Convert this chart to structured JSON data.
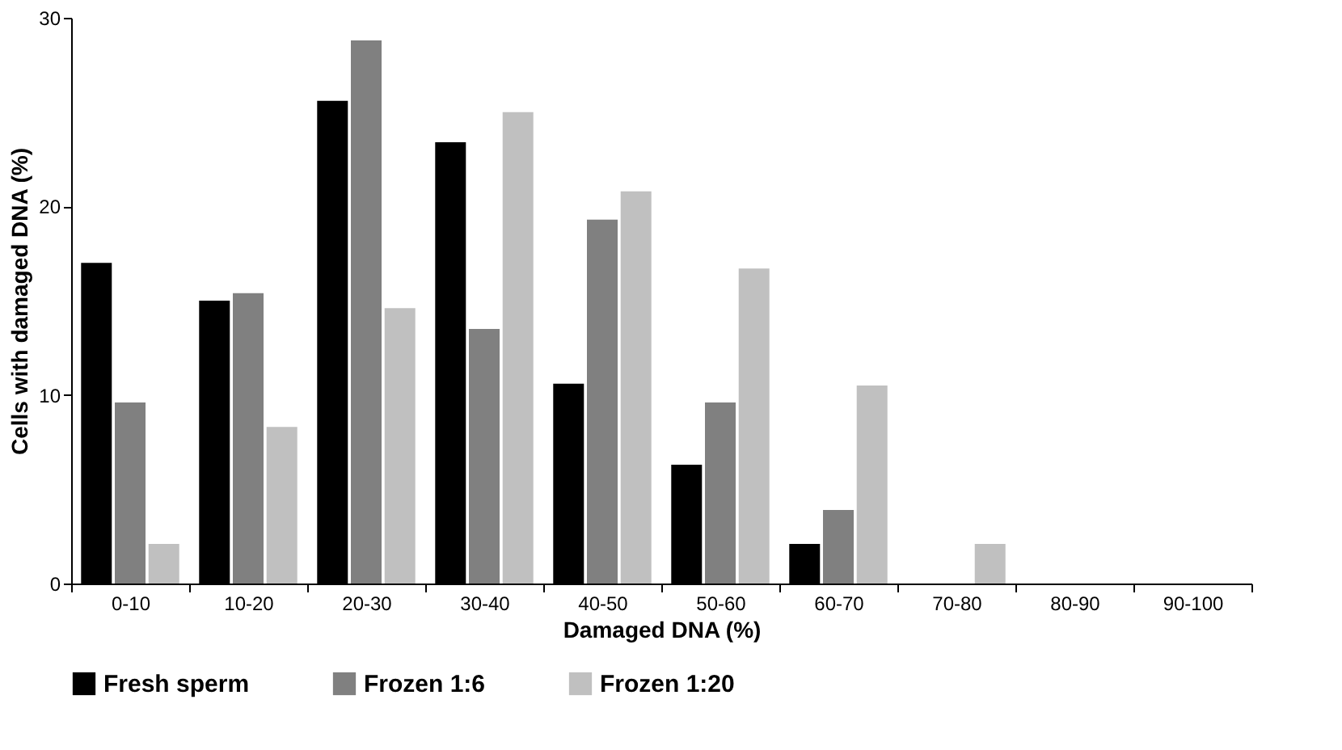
{
  "chart_data": {
    "type": "bar",
    "xlabel": "Damaged DNA (%)",
    "ylabel": "Cells with damaged DNA (%)",
    "categories": [
      "0-10",
      "10-20",
      "20-30",
      "30-40",
      "40-50",
      "50-60",
      "60-70",
      "70-80",
      "80-90",
      "90-100"
    ],
    "series": [
      {
        "name": "Fresh sperm",
        "color": "#000000",
        "values": [
          17.0,
          15.0,
          25.6,
          23.4,
          10.6,
          6.3,
          2.1,
          0,
          0,
          0
        ]
      },
      {
        "name": "Frozen 1:6",
        "color": "#808080",
        "values": [
          9.6,
          15.4,
          28.8,
          13.5,
          19.3,
          9.6,
          3.9,
          0,
          0,
          0
        ]
      },
      {
        "name": "Frozen 1:20",
        "color": "#c0c0c0",
        "values": [
          2.1,
          8.3,
          14.6,
          25.0,
          20.8,
          16.7,
          10.5,
          2.1,
          0,
          0
        ]
      }
    ],
    "ylim": [
      0,
      30
    ],
    "yticks": [
      0,
      10,
      20,
      30
    ],
    "grid": false,
    "legend": "bottom"
  }
}
